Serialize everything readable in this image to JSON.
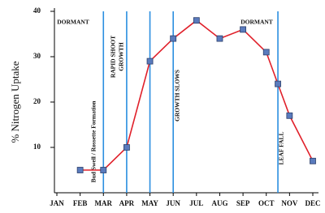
{
  "chart_data": {
    "type": "line",
    "y_label": "% Nitrogen Uptake",
    "x": [
      2,
      3,
      4,
      5,
      6,
      7,
      8,
      9,
      10,
      10.5,
      11,
      12
    ],
    "series": [
      {
        "color": "#e0202a",
        "values": [
          5,
          5,
          10,
          29,
          34,
          38,
          34,
          36,
          31,
          24,
          17,
          7
        ]
      }
    ],
    "marker_color": "#5a7bbd",
    "xlim": [
      1,
      12
    ],
    "xticks": [
      {
        "value": 1,
        "label": "JAN"
      },
      {
        "value": 2,
        "label": "FEB"
      },
      {
        "value": 3,
        "label": "MAR"
      },
      {
        "value": 4,
        "label": "APR"
      },
      {
        "value": 5,
        "label": "MAY"
      },
      {
        "value": 6,
        "label": "JUN"
      },
      {
        "value": 7,
        "label": "JUL"
      },
      {
        "value": 8,
        "label": "AUG"
      },
      {
        "value": 9,
        "label": "SEP"
      },
      {
        "value": 10,
        "label": "OCT"
      },
      {
        "value": 11,
        "label": "NOV"
      },
      {
        "value": 12,
        "label": "DEC"
      }
    ],
    "ylim": [
      0,
      40
    ],
    "yticks": [
      10,
      20,
      30,
      40
    ],
    "phase_lines": [
      3,
      4,
      5,
      6,
      10.5
    ],
    "phase_line_color": "#2b8fe0",
    "annotations": [
      "DORMANT",
      "Bud Swell / Rossette Formation",
      "RAPID SHOOT",
      "GROWTH",
      "GROWTH SLOWS",
      "DORMANT",
      "LEAF FALL"
    ]
  }
}
